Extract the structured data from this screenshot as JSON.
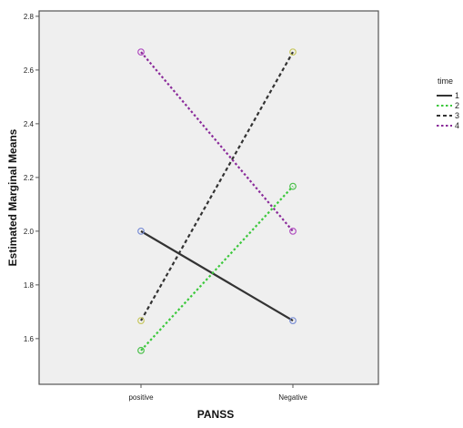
{
  "chart_data": {
    "type": "line",
    "categories": [
      "positive",
      "Negative"
    ],
    "xlabel": "PANSS",
    "ylabel": "Estimated Marginal Means",
    "ylim": [
      1.43,
      2.82
    ],
    "yticks": [
      "1.6",
      "1.8",
      "2.0",
      "2.2",
      "2.4",
      "2.6",
      "2.8"
    ],
    "grid": false,
    "plot_background": "#efefef",
    "legend": {
      "title": "time",
      "placement": "right"
    },
    "series": [
      {
        "name": "1",
        "values": [
          2.0,
          1.667
        ],
        "color": "#333333",
        "dash": "solid",
        "marker": "#7b8fd6"
      },
      {
        "name": "2",
        "values": [
          1.556,
          2.167
        ],
        "color": "#3cc83c",
        "dash": "dotted",
        "marker": "#4cc04c"
      },
      {
        "name": "3",
        "values": [
          1.667,
          2.667
        ],
        "color": "#333333",
        "dash": "dashed",
        "marker": "#c8c860"
      },
      {
        "name": "4",
        "values": [
          2.667,
          2.0
        ],
        "color": "#8a2a9a",
        "dash": "dotted",
        "marker": "#b14fc0"
      }
    ]
  }
}
